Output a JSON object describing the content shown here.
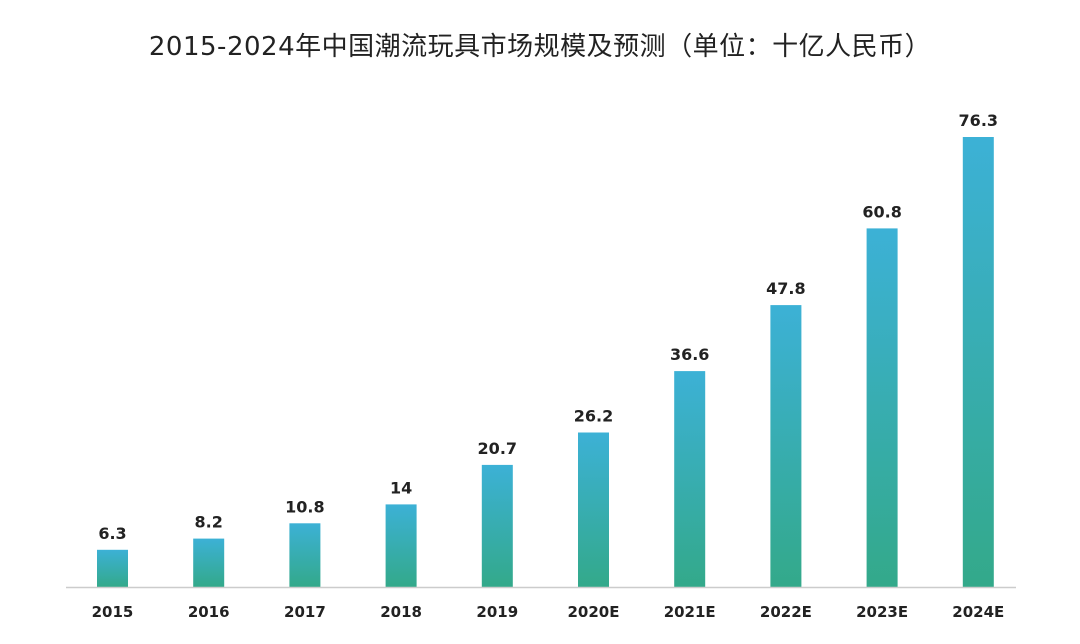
{
  "chart_data": {
    "type": "bar",
    "title": "2015-2024年中国潮流玩具市场规模及预测（单位：十亿人民币）",
    "xlabel": "",
    "ylabel": "",
    "categories": [
      "2015",
      "2016",
      "2017",
      "2018",
      "2019",
      "2020E",
      "2021E",
      "2022E",
      "2023E",
      "2024E"
    ],
    "values": [
      6.3,
      8.2,
      10.8,
      14,
      20.7,
      26.2,
      36.6,
      47.8,
      60.8,
      76.3
    ],
    "value_labels": [
      "6.3",
      "8.2",
      "10.8",
      "14",
      "20.7",
      "26.2",
      "36.6",
      "47.8",
      "60.8",
      "76.3"
    ],
    "ylim": [
      0,
      76.3
    ],
    "grid": false,
    "legend": "none",
    "colors": {
      "bar_top": "#3cb1d6",
      "bar_bottom": "#33a98a",
      "axis": "#cccccc",
      "text": "#222222"
    }
  }
}
